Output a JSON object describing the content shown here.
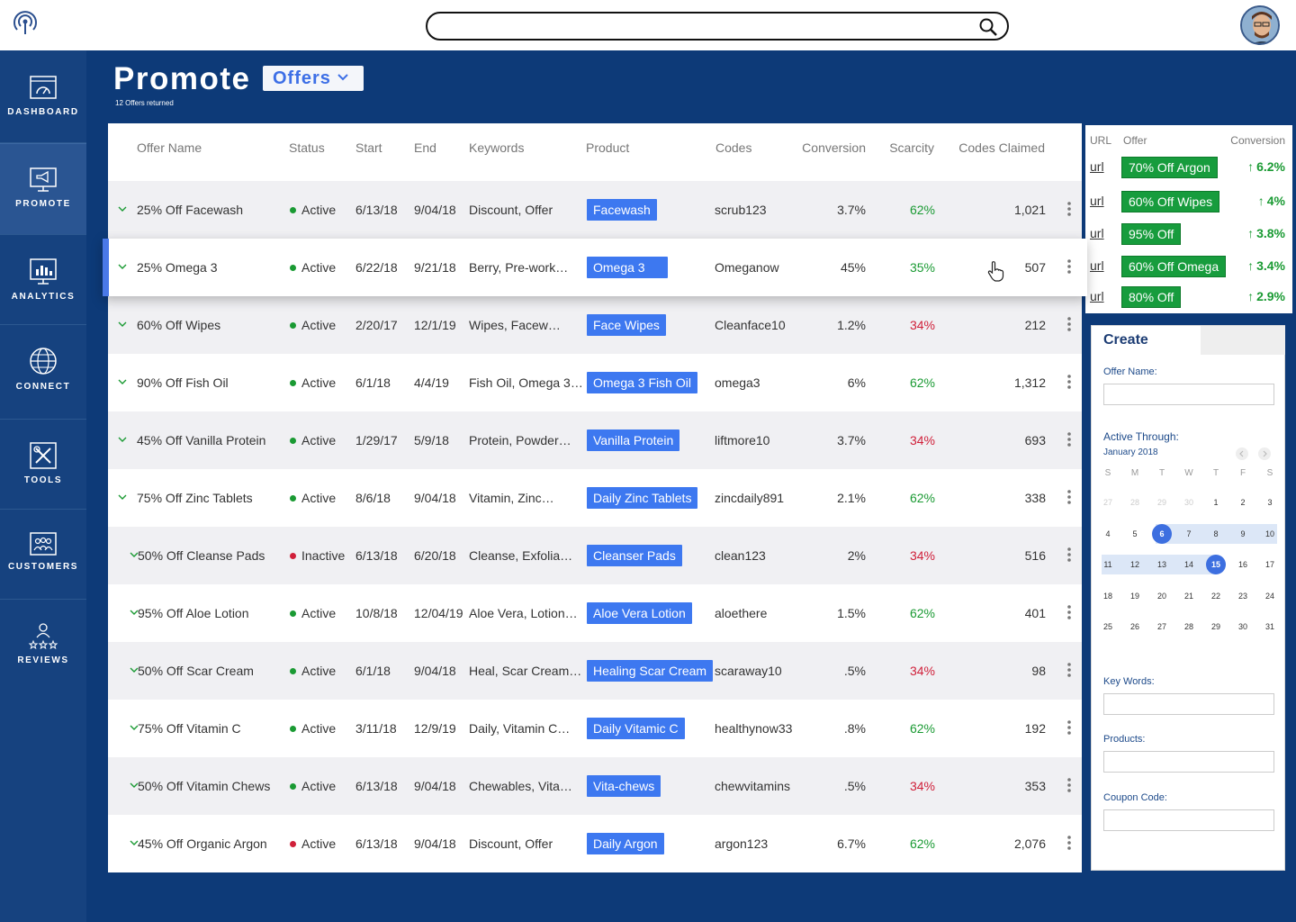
{
  "header": {
    "search_placeholder": ""
  },
  "sidebar": {
    "items": [
      {
        "label": "DASHBOARD"
      },
      {
        "label": "PROMOTE"
      },
      {
        "label": "ANALYTICS"
      },
      {
        "label": "CONNECT"
      },
      {
        "label": "TOOLS"
      },
      {
        "label": "CUSTOMERS"
      },
      {
        "label": "REVIEWS"
      }
    ]
  },
  "page": {
    "title": "Promote",
    "dropdown": "Offers",
    "subtitle": "12 Offers returned"
  },
  "table": {
    "headers": [
      "Offer Name",
      "Status",
      "Start",
      "End",
      "Keywords",
      "Product",
      "Codes",
      "Conversion",
      "Scarcity",
      "Codes Claimed"
    ],
    "rows": [
      {
        "name": "25% Off Facewash",
        "status": "Active",
        "dot": "#1a9a33",
        "start": "6/13/18",
        "end": "9/04/18",
        "keywords": "Discount, Offer",
        "product": "Facewash",
        "code": "scrub123",
        "conversion": "3.7%",
        "scarcity": "62%",
        "scarcity_color": "green",
        "claimed": "1,021"
      },
      {
        "name": "25% Omega 3",
        "status": "Active",
        "dot": "#1a9a33",
        "start": "6/22/18",
        "end": "9/21/18",
        "keywords": "Berry, Pre-work…",
        "product": "Omega 3",
        "code": "Omeganow",
        "conversion": "45%",
        "scarcity": "35%",
        "scarcity_color": "green",
        "claimed": "507"
      },
      {
        "name": "60% Off Wipes",
        "status": "Active",
        "dot": "#1a9a33",
        "start": "2/20/17",
        "end": "12/1/19",
        "keywords": "Wipes, Facew…",
        "product": "Face Wipes",
        "code": "Cleanface10",
        "conversion": "1.2%",
        "scarcity": "34%",
        "scarcity_color": "red",
        "claimed": "212"
      },
      {
        "name": "90% Off Fish Oil",
        "status": "Active",
        "dot": "#1a9a33",
        "start": "6/1/18",
        "end": "4/4/19",
        "keywords": "Fish Oil, Omega 3…",
        "product": "Omega 3 Fish Oil",
        "code": "omega3",
        "conversion": "6%",
        "scarcity": "62%",
        "scarcity_color": "green",
        "claimed": "1,312"
      },
      {
        "name": "45% Off Vanilla Protein",
        "status": "Active",
        "dot": "#1a9a33",
        "start": "1/29/17",
        "end": "5/9/18",
        "keywords": "Protein, Powder…",
        "product": "Vanilla Protein",
        "code": "liftmore10",
        "conversion": "3.7%",
        "scarcity": "34%",
        "scarcity_color": "red",
        "claimed": "693"
      },
      {
        "name": "75% Off Zinc Tablets",
        "status": "Active",
        "dot": "#1a9a33",
        "start": "8/6/18",
        "end": "9/04/18",
        "keywords": "Vitamin, Zinc…",
        "product": "Daily Zinc Tablets",
        "code": "zincdaily891",
        "conversion": "2.1%",
        "scarcity": "62%",
        "scarcity_color": "green",
        "claimed": "338"
      },
      {
        "name": "50% Off Cleanse Pads",
        "status": "Inactive",
        "dot": "#d0203a",
        "start": "6/13/18",
        "end": "6/20/18",
        "keywords": "Cleanse, Exfolia…",
        "product": "Cleanser Pads",
        "code": "clean123",
        "conversion": "2%",
        "scarcity": "34%",
        "scarcity_color": "red",
        "claimed": "516"
      },
      {
        "name": "95% Off Aloe Lotion",
        "status": "Active",
        "dot": "#1a9a33",
        "start": "10/8/18",
        "end": "12/04/19",
        "keywords": "Aloe Vera, Lotion…",
        "product": "Aloe Vera Lotion",
        "code": "aloethere",
        "conversion": "1.5%",
        "scarcity": "62%",
        "scarcity_color": "green",
        "claimed": "401"
      },
      {
        "name": "50% Off Scar Cream",
        "status": "Active",
        "dot": "#1a9a33",
        "start": "6/1/18",
        "end": "9/04/18",
        "keywords": "Heal, Scar Cream…",
        "product": "Healing Scar Cream",
        "code": "scaraway10",
        "conversion": ".5%",
        "scarcity": "34%",
        "scarcity_color": "red",
        "claimed": "98"
      },
      {
        "name": "75% Off Vitamin C",
        "status": "Active",
        "dot": "#1a9a33",
        "start": "3/11/18",
        "end": "12/9/19",
        "keywords": "Daily, Vitamin C…",
        "product": "Daily Vitamic C",
        "code": "healthynow33",
        "conversion": ".8%",
        "scarcity": "62%",
        "scarcity_color": "green",
        "claimed": "192"
      },
      {
        "name": "50% Off Vitamin Chews",
        "status": "Active",
        "dot": "#1a9a33",
        "start": "6/13/18",
        "end": "9/04/18",
        "keywords": "Chewables, Vita…",
        "product": "Vita-chews",
        "code": "chewvitamins",
        "conversion": ".5%",
        "scarcity": "34%",
        "scarcity_color": "red",
        "claimed": "353"
      },
      {
        "name": "45% Off Organic Argon",
        "status": "Active",
        "dot": "#d0203a",
        "start": "6/13/18",
        "end": "9/04/18",
        "keywords": "Discount, Offer",
        "product": "Daily Argon",
        "code": "argon123",
        "conversion": "6.7%",
        "scarcity": "62%",
        "scarcity_color": "green",
        "claimed": "2,076"
      }
    ]
  },
  "top_offers": {
    "headers": [
      "URL",
      "Offer",
      "Conversion"
    ],
    "rows": [
      {
        "url": "url",
        "offer": "70% Off Argon",
        "conversion": "6.2%"
      },
      {
        "url": "url",
        "offer": "60% Off Wipes",
        "conversion": "4%"
      },
      {
        "url": "url",
        "offer": "95% Off",
        "conversion": "3.8%"
      },
      {
        "url": "url",
        "offer": "60% Off Omega",
        "conversion": "3.4%"
      },
      {
        "url": "url",
        "offer": "80% Off",
        "conversion": "2.9%"
      }
    ]
  },
  "create": {
    "tab": "Create",
    "offer_name_label": "Offer Name:",
    "active_through_label": "Active Through:",
    "month": "January 2018",
    "weekdays": [
      "S",
      "M",
      "T",
      "W",
      "T",
      "F",
      "S"
    ],
    "weeks": [
      [
        "27",
        "28",
        "29",
        "30",
        "1",
        "2",
        "3"
      ],
      [
        "4",
        "5",
        "6",
        "7",
        "8",
        "9",
        "10"
      ],
      [
        "11",
        "12",
        "13",
        "14",
        "15",
        "16",
        "17"
      ],
      [
        "18",
        "19",
        "20",
        "21",
        "22",
        "23",
        "24"
      ],
      [
        "25",
        "26",
        "27",
        "28",
        "29",
        "30",
        "31"
      ]
    ],
    "selected_start": "6",
    "selected_end": "15",
    "keywords_label": "Key Words:",
    "products_label": "Products:",
    "coupon_label": "Coupon Code:"
  },
  "colors": {
    "accent": "#3d78f0",
    "nav": "#16427f",
    "bg": "#0d3a78",
    "positive": "#1a9a33",
    "negative": "#d0203a"
  }
}
